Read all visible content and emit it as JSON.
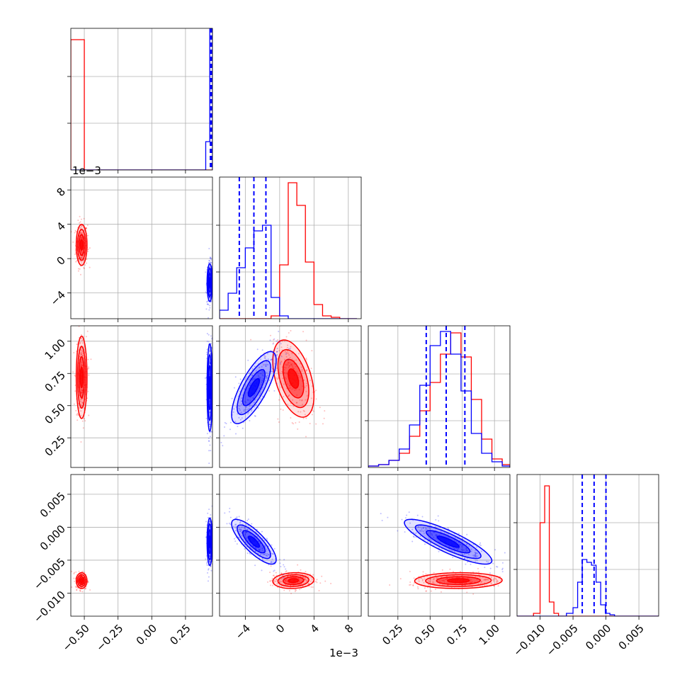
{
  "chart_data": {
    "type": "corner",
    "parameters": 4,
    "series_colors": {
      "blue": "#0000ff",
      "red": "#ff0000"
    },
    "offset_text": {
      "p2_vertical": "1e−3",
      "p2_horizontal": "1e−3"
    },
    "axes": {
      "p1": {
        "range": [
          -0.6,
          0.45
        ],
        "ticks": [
          -0.5,
          -0.25,
          0.0,
          0.25
        ],
        "tick_labels": [
          "−0.50",
          "−0.25",
          "0.00",
          "0.25"
        ]
      },
      "p2": {
        "range": [
          -7,
          9.5
        ],
        "ticks": [
          -4,
          0,
          4,
          8
        ],
        "tick_labels": [
          "−4",
          "0",
          "4",
          "8"
        ]
      },
      "p3": {
        "range": [
          0.02,
          1.12
        ],
        "ticks": [
          0.25,
          0.5,
          0.75,
          1.0
        ],
        "tick_labels": [
          "0.25",
          "0.50",
          "0.75",
          "1.00"
        ]
      },
      "p4": {
        "range": [
          -0.0135,
          0.008
        ],
        "ticks": [
          -0.01,
          -0.005,
          0.0,
          0.005
        ],
        "tick_labels": [
          "−0.010",
          "−0.005",
          "0.000",
          "0.005"
        ]
      }
    },
    "diagonal": [
      {
        "param": "p1",
        "bins": [
          -0.6,
          -0.5,
          -0.45,
          0.4,
          0.43,
          0.45
        ],
        "red_counts": [
          0.92,
          0,
          0,
          0,
          0
        ],
        "blue_counts": [
          0,
          0,
          0,
          0.2,
          1.0
        ],
        "quantiles": [
          0.44,
          0.442,
          0.444
        ],
        "quantile_style": "thick"
      },
      {
        "param": "p2",
        "bins": [
          -7,
          -6,
          -5,
          -4,
          -3,
          -2,
          -1,
          0,
          1,
          2,
          3,
          4,
          5,
          6,
          7,
          8,
          9
        ],
        "blue_counts": [
          0.06,
          0.18,
          0.36,
          0.5,
          0.62,
          0.66,
          0.15,
          0.02,
          0,
          0,
          0,
          0,
          0,
          0,
          0,
          0
        ],
        "red_counts": [
          0,
          0,
          0,
          0,
          0,
          0,
          0.02,
          0.38,
          0.96,
          0.8,
          0.4,
          0.1,
          0.02,
          0.01,
          0,
          0
        ],
        "quantiles": [
          -4.7,
          -3.0,
          -1.6
        ]
      },
      {
        "param": "p3",
        "bins": [
          0.02,
          0.1,
          0.18,
          0.26,
          0.34,
          0.42,
          0.5,
          0.58,
          0.66,
          0.74,
          0.82,
          0.9,
          0.98,
          1.06,
          1.12
        ],
        "blue_counts": [
          0.01,
          0.02,
          0.05,
          0.13,
          0.3,
          0.58,
          0.86,
          0.96,
          0.8,
          0.54,
          0.24,
          0.1,
          0.04,
          0.01
        ],
        "red_counts": [
          0.01,
          0.02,
          0.05,
          0.1,
          0.22,
          0.4,
          0.6,
          0.8,
          0.95,
          0.78,
          0.48,
          0.2,
          0.06,
          0.02
        ],
        "quantiles": [
          0.47,
          0.625,
          0.77
        ]
      },
      {
        "param": "p4",
        "bins": [
          -0.0135,
          -0.011,
          -0.01,
          -0.0093,
          -0.0086,
          -0.0079,
          -0.0072,
          -0.006,
          -0.005,
          -0.0043,
          -0.0036,
          -0.0029,
          -0.0022,
          -0.0015,
          -0.0008,
          -0.0001,
          0.0006,
          0.0013,
          0.002,
          0.008
        ],
        "red_counts": [
          0,
          0.02,
          0.66,
          0.92,
          0.1,
          0.02,
          0,
          0,
          0,
          0,
          0,
          0,
          0,
          0,
          0,
          0,
          0,
          0,
          0
        ],
        "blue_counts": [
          0,
          0,
          0,
          0,
          0,
          0,
          0,
          0.02,
          0.06,
          0.24,
          0.4,
          0.38,
          0.36,
          0.24,
          0.08,
          0.02,
          0.01,
          0,
          0
        ],
        "quantiles": [
          -0.0036,
          -0.0018,
          0.0
        ]
      }
    ],
    "offdiagonal": [
      {
        "x": "p1",
        "y": "p2",
        "blue": {
          "mean": [
            0.43,
            -2.8
          ],
          "sd": [
            0.01,
            1.1
          ],
          "rho": 0.0
        },
        "red": {
          "mean": [
            -0.52,
            1.6
          ],
          "sd": [
            0.02,
            1.2
          ],
          "rho": 0.0
        }
      },
      {
        "x": "p1",
        "y": "p3",
        "blue": {
          "mean": [
            0.43,
            0.64
          ],
          "sd": [
            0.01,
            0.17
          ],
          "rho": 0.0
        },
        "red": {
          "mean": [
            -0.52,
            0.72
          ],
          "sd": [
            0.02,
            0.16
          ],
          "rho": 0.0
        }
      },
      {
        "x": "p2",
        "y": "p3",
        "blue": {
          "mean": [
            -3.0,
            0.64
          ],
          "sd": [
            1.3,
            0.14
          ],
          "rho": 0.75
        },
        "red": {
          "mean": [
            1.6,
            0.71
          ],
          "sd": [
            1.2,
            0.15
          ],
          "rho": -0.45
        }
      },
      {
        "x": "p1",
        "y": "p4",
        "blue": {
          "mean": [
            0.43,
            -0.0022
          ],
          "sd": [
            0.01,
            0.0018
          ],
          "rho": 0.0
        },
        "red": {
          "mean": [
            -0.52,
            -0.0081
          ],
          "sd": [
            0.02,
            0.0006
          ],
          "rho": 0.0
        }
      },
      {
        "x": "p2",
        "y": "p4",
        "blue": {
          "mean": [
            -3.0,
            -0.0022
          ],
          "sd": [
            1.3,
            0.0017
          ],
          "rho": -0.8
        },
        "red": {
          "mean": [
            1.6,
            -0.0081
          ],
          "sd": [
            1.2,
            0.0006
          ],
          "rho": 0.1
        }
      },
      {
        "x": "p3",
        "y": "p4",
        "blue": {
          "mean": [
            0.64,
            -0.0022
          ],
          "sd": [
            0.17,
            0.0017
          ],
          "rho": -0.85
        },
        "red": {
          "mean": [
            0.72,
            -0.0081
          ],
          "sd": [
            0.17,
            0.0006
          ],
          "rho": 0.05
        }
      }
    ],
    "grid": true
  }
}
